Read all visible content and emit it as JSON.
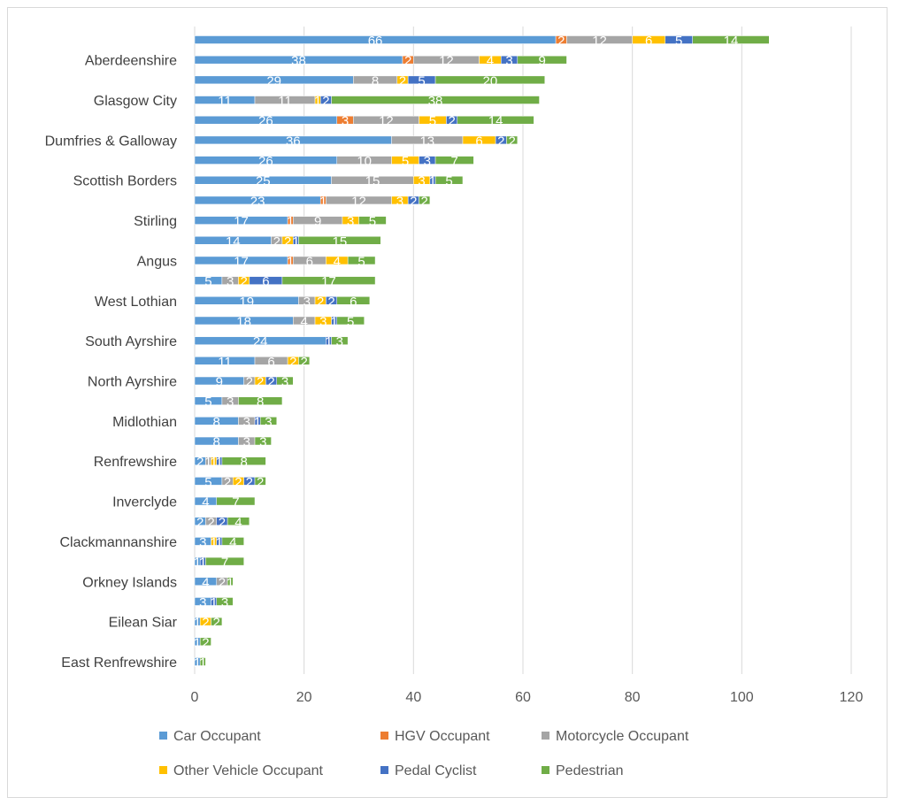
{
  "chart_data": {
    "type": "bar",
    "orientation": "horizontal",
    "stacked": true,
    "title": "",
    "xlabel": "",
    "ylabel": "",
    "xlim": [
      0,
      120
    ],
    "xticks": [
      0,
      20,
      40,
      60,
      80,
      100,
      120
    ],
    "grid": "vertical",
    "legend_position": "bottom",
    "categories": [
      "",
      "Aberdeenshire",
      "",
      "Glasgow City",
      "",
      "Dumfries & Galloway",
      "",
      "Scottish Borders",
      "",
      "Stirling",
      "",
      "Angus",
      "",
      "West Lothian",
      "",
      "South Ayrshire",
      "",
      "North Ayrshire",
      "",
      "Midlothian",
      "",
      "Renfrewshire",
      "",
      "Inverclyde",
      "",
      "Clackmannanshire",
      "",
      "Orkney Islands",
      "",
      "Eilean Siar",
      "",
      "East Renfrewshire"
    ],
    "series": [
      {
        "name": "Car Occupant",
        "color": "#5b9bd5",
        "values": [
          66,
          38,
          29,
          11,
          26,
          36,
          26,
          25,
          23,
          17,
          14,
          17,
          5,
          19,
          18,
          24,
          11,
          9,
          5,
          8,
          8,
          2,
          5,
          4,
          2,
          3,
          1,
          4,
          3,
          1,
          1,
          1
        ]
      },
      {
        "name": "HGV Occupant",
        "color": "#ed7d31",
        "values": [
          2,
          2,
          0,
          0,
          3,
          0,
          0,
          0,
          1,
          1,
          0,
          1,
          0,
          0,
          0,
          0,
          0,
          0,
          0,
          0,
          0,
          0,
          0,
          0,
          0,
          0,
          0,
          0,
          0,
          0,
          0,
          0
        ]
      },
      {
        "name": "Motorcycle Occupant",
        "color": "#a5a5a5",
        "values": [
          12,
          12,
          8,
          11,
          12,
          13,
          10,
          15,
          12,
          9,
          2,
          6,
          3,
          3,
          4,
          0,
          6,
          2,
          3,
          3,
          3,
          1,
          2,
          0,
          2,
          0,
          0,
          2,
          0,
          0,
          0,
          0
        ]
      },
      {
        "name": "Other Vehicle Occupant",
        "color": "#ffc000",
        "values": [
          6,
          4,
          2,
          1,
          5,
          6,
          5,
          3,
          3,
          3,
          2,
          4,
          2,
          2,
          3,
          0,
          2,
          2,
          0,
          0,
          0,
          1,
          2,
          0,
          0,
          1,
          0,
          0,
          0,
          2,
          0,
          0
        ]
      },
      {
        "name": "Pedal Cyclist",
        "color": "#4472c4",
        "values": [
          5,
          3,
          5,
          2,
          2,
          2,
          3,
          1,
          2,
          0,
          1,
          0,
          6,
          2,
          1,
          1,
          0,
          2,
          0,
          1,
          0,
          1,
          2,
          0,
          2,
          1,
          1,
          0,
          1,
          0,
          0,
          0
        ]
      },
      {
        "name": "Pedestrian",
        "color": "#70ad47",
        "values": [
          14,
          9,
          20,
          38,
          14,
          2,
          7,
          5,
          2,
          5,
          15,
          5,
          17,
          6,
          5,
          3,
          2,
          3,
          8,
          3,
          3,
          8,
          2,
          7,
          4,
          4,
          7,
          1,
          3,
          2,
          2,
          1
        ]
      }
    ]
  }
}
